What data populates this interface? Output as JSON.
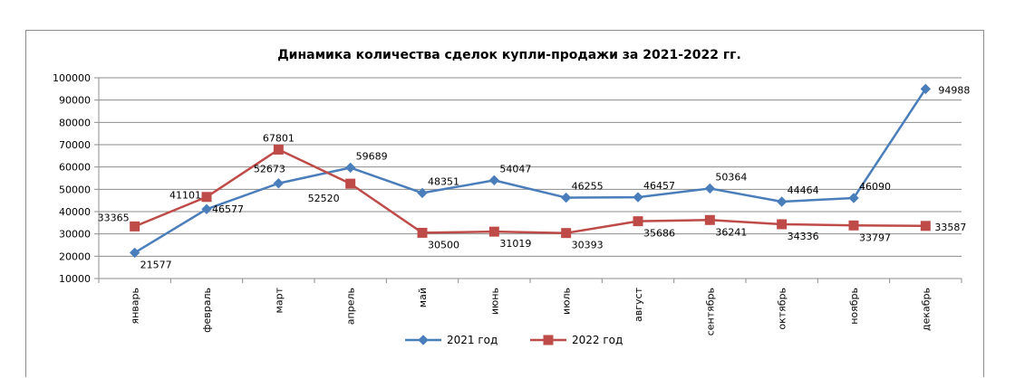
{
  "chart_data": {
    "type": "line",
    "title": "Динамика количества сделок купли-продажи за 2021-2022 гг.",
    "xlabel": "",
    "ylabel": "",
    "ylim": [
      10000,
      100000
    ],
    "yticks": [
      "100000",
      "90000",
      "80000",
      "70000",
      "60000",
      "50000",
      "40000",
      "30000",
      "20000",
      "10000"
    ],
    "grid": true,
    "legend": "bottom",
    "categories": [
      "январь",
      "февраль",
      "март",
      "апрель",
      "май",
      "июнь",
      "июль",
      "август",
      "сентябрь",
      "октябрь",
      "ноябрь",
      "декабрь"
    ],
    "series": [
      {
        "name": "2021 год",
        "color": "#4a7ebb",
        "marker": "diamond",
        "values": [
          21577,
          41101,
          52673,
          59689,
          48351,
          54047,
          46255,
          46457,
          50364,
          44464,
          46090,
          94988
        ]
      },
      {
        "name": "2022 год",
        "color": "#be4b48",
        "marker": "square",
        "values": [
          33365,
          46577,
          67801,
          52520,
          30500,
          31019,
          30393,
          35686,
          36241,
          34336,
          33797,
          33587
        ]
      }
    ]
  }
}
